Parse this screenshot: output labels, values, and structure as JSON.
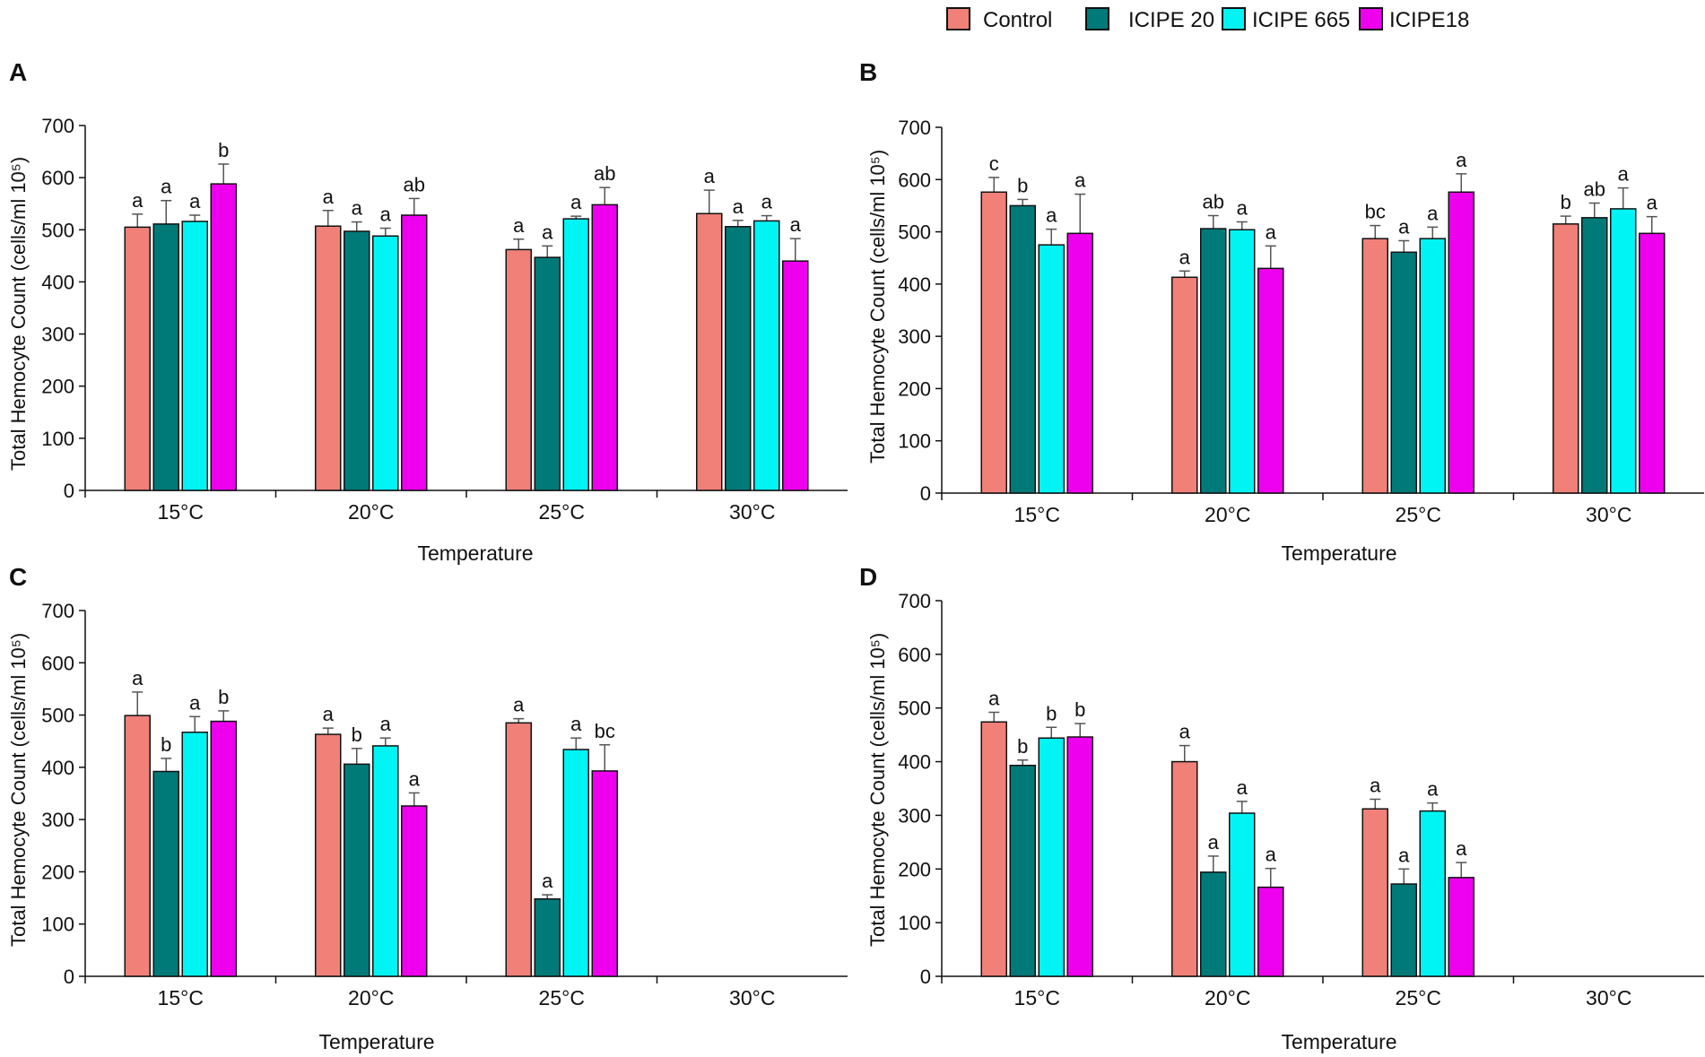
{
  "legend": {
    "items": [
      {
        "label": "Control",
        "color": "#f08078"
      },
      {
        "label": "ICIPE 20",
        "color": "#007a78"
      },
      {
        "label": "ICIPE 665",
        "color": "#00f4f4"
      },
      {
        "label": "ICIPE18",
        "color": "#ee00ee"
      }
    ]
  },
  "chart_data": [
    {
      "panel": "A",
      "type": "bar",
      "title": "",
      "xlabel": "Temperature",
      "ylabel": "Total Hemocyte Count (cells/ml 10⁵)",
      "ylim": [
        0,
        700
      ],
      "yticks": [
        0,
        100,
        200,
        300,
        400,
        500,
        600,
        700
      ],
      "categories": [
        "15°C",
        "20°C",
        "25°C",
        "30°C"
      ],
      "series": [
        {
          "name": "Control",
          "values": [
            505,
            507,
            462,
            531
          ],
          "errors": [
            25,
            30,
            20,
            45
          ],
          "letters": [
            "a",
            "a",
            "a",
            "a"
          ]
        },
        {
          "name": "ICIPE 20",
          "values": [
            511,
            497,
            447,
            506
          ],
          "errors": [
            45,
            18,
            22,
            12
          ],
          "letters": [
            "a",
            "a",
            "a",
            "a"
          ]
        },
        {
          "name": "ICIPE 665",
          "values": [
            516,
            488,
            521,
            517
          ],
          "errors": [
            12,
            15,
            5,
            10
          ],
          "letters": [
            "a",
            "a",
            "a",
            "a"
          ]
        },
        {
          "name": "ICIPE18",
          "values": [
            588,
            528,
            548,
            440
          ],
          "errors": [
            38,
            32,
            33,
            43
          ],
          "letters": [
            "b",
            "ab",
            "ab",
            "a"
          ]
        }
      ]
    },
    {
      "panel": "B",
      "type": "bar",
      "title": "",
      "xlabel": "Temperature",
      "ylabel": "Total Hemocyte Count (cells/ml 10⁵)",
      "ylim": [
        0,
        700
      ],
      "yticks": [
        0,
        100,
        200,
        300,
        400,
        500,
        600,
        700
      ],
      "categories": [
        "15°C",
        "20°C",
        "25°C",
        "30°C"
      ],
      "series": [
        {
          "name": "Control",
          "values": [
            576,
            413,
            487,
            515
          ],
          "errors": [
            28,
            12,
            25,
            15
          ],
          "letters": [
            "c",
            "a",
            "bc",
            "b"
          ]
        },
        {
          "name": "ICIPE 20",
          "values": [
            550,
            506,
            461,
            527
          ],
          "errors": [
            12,
            25,
            22,
            28
          ],
          "letters": [
            "b",
            "ab",
            "a",
            "ab"
          ]
        },
        {
          "name": "ICIPE 665",
          "values": [
            475,
            504,
            487,
            544
          ],
          "errors": [
            30,
            15,
            22,
            40
          ],
          "letters": [
            "a",
            "a",
            "a",
            "a"
          ]
        },
        {
          "name": "ICIPE18",
          "values": [
            497,
            430,
            576,
            497
          ],
          "errors": [
            75,
            43,
            35,
            32
          ],
          "letters": [
            "a",
            "a",
            "a",
            "a"
          ]
        }
      ]
    },
    {
      "panel": "C",
      "type": "bar",
      "title": "",
      "xlabel": "Temperature",
      "ylabel": "Total Hemocyte Count (cells/ml 10⁵)",
      "ylim": [
        0,
        700
      ],
      "yticks": [
        0,
        100,
        200,
        300,
        400,
        500,
        600,
        700
      ],
      "categories": [
        "15°C",
        "20°C",
        "25°C",
        "30°C"
      ],
      "series": [
        {
          "name": "Control",
          "values": [
            499,
            463,
            485,
            null
          ],
          "errors": [
            45,
            12,
            8,
            null
          ],
          "letters": [
            "a",
            "a",
            "a",
            ""
          ]
        },
        {
          "name": "ICIPE 20",
          "values": [
            392,
            406,
            148,
            null
          ],
          "errors": [
            25,
            30,
            8,
            null
          ],
          "letters": [
            "b",
            "b",
            "a",
            ""
          ]
        },
        {
          "name": "ICIPE 665",
          "values": [
            467,
            441,
            434,
            null
          ],
          "errors": [
            30,
            15,
            22,
            null
          ],
          "letters": [
            "a",
            "a",
            "a",
            ""
          ]
        },
        {
          "name": "ICIPE18",
          "values": [
            488,
            326,
            393,
            null
          ],
          "errors": [
            20,
            25,
            50,
            null
          ],
          "letters": [
            "b",
            "a",
            "bc",
            ""
          ]
        }
      ]
    },
    {
      "panel": "D",
      "type": "bar",
      "title": "",
      "xlabel": "Temperature",
      "ylabel": "Total Hemocyte Count (cells/ml 10⁵)",
      "ylim": [
        0,
        700
      ],
      "yticks": [
        0,
        100,
        200,
        300,
        400,
        500,
        600,
        700
      ],
      "categories": [
        "15°C",
        "20°C",
        "25°C",
        "30°C"
      ],
      "series": [
        {
          "name": "Control",
          "values": [
            474,
            400,
            312,
            null
          ],
          "errors": [
            18,
            30,
            18,
            null
          ],
          "letters": [
            "a",
            "a",
            "a",
            ""
          ]
        },
        {
          "name": "ICIPE 20",
          "values": [
            393,
            194,
            172,
            null
          ],
          "errors": [
            10,
            30,
            28,
            null
          ],
          "letters": [
            "b",
            "a",
            "a",
            ""
          ]
        },
        {
          "name": "ICIPE 665",
          "values": [
            444,
            304,
            308,
            null
          ],
          "errors": [
            20,
            22,
            15,
            null
          ],
          "letters": [
            "b",
            "a",
            "a",
            ""
          ]
        },
        {
          "name": "ICIPE18",
          "values": [
            446,
            166,
            184,
            null
          ],
          "errors": [
            25,
            35,
            28,
            null
          ],
          "letters": [
            "b",
            "a",
            "a",
            ""
          ]
        }
      ]
    }
  ]
}
